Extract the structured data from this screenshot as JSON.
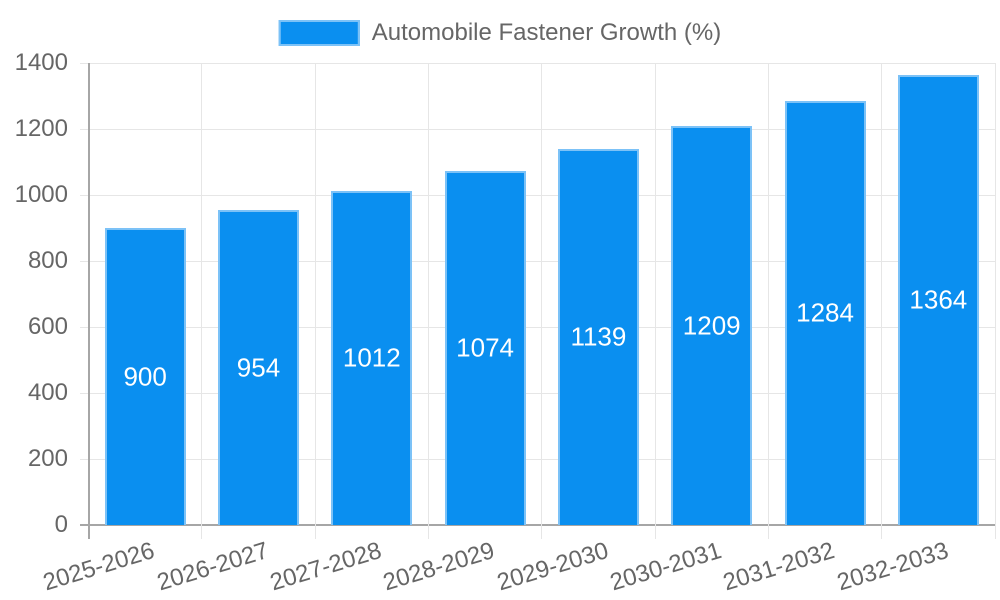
{
  "chart_data": {
    "type": "bar",
    "title": "",
    "legend_label": "Automobile Fastener Growth (%)",
    "legend_position": "top",
    "categories": [
      "2025-2026",
      "2026-2027",
      "2027-2028",
      "2028-2029",
      "2029-2030",
      "2030-2031",
      "2031-2032",
      "2032-2033"
    ],
    "series": [
      {
        "name": "Automobile Fastener Growth (%)",
        "values": [
          900,
          954,
          1012,
          1074,
          1139,
          1209,
          1284,
          1364
        ]
      }
    ],
    "value_labels_position": "inside-center",
    "xlabel": "",
    "ylabel": "",
    "ylim": [
      0,
      1400
    ],
    "yticks": [
      0,
      200,
      400,
      600,
      800,
      1000,
      1200,
      1400
    ],
    "grid": true,
    "x_label_rotation_deg": -17,
    "colors": {
      "bar_fill": "#0a8ff0",
      "bar_border": "#7cc2f7",
      "grid": "#e6e6e6",
      "axis": "#a6a6a6",
      "tick_text": "#666666",
      "legend_text": "#666666",
      "value_text": "#ffffff",
      "background": "#ffffff"
    }
  }
}
